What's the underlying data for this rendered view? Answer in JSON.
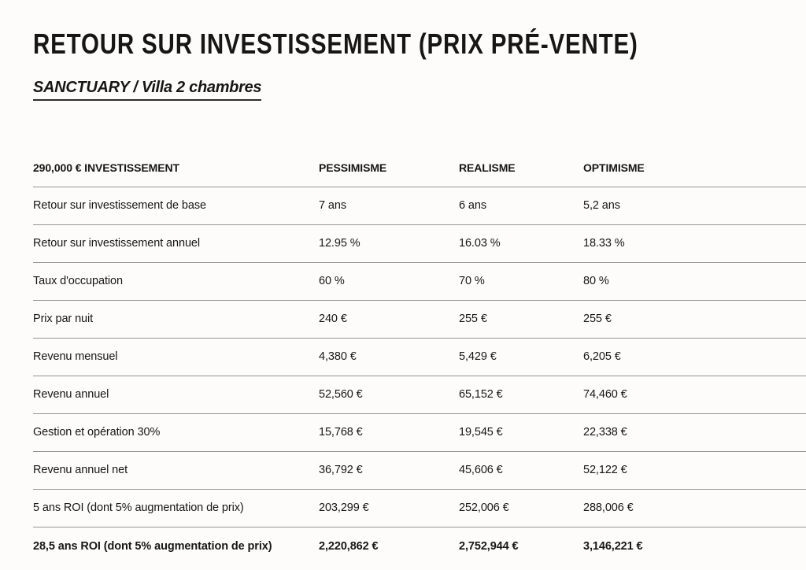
{
  "page": {
    "title": "RETOUR SUR INVESTISSEMENT (PRIX PRÉ-VENTE)",
    "subtitle": "SANCTUARY / Villa 2 chambres"
  },
  "table": {
    "header": {
      "label": "290,000 € INVESTISSEMENT",
      "columns": [
        "PESSIMISME",
        "REALISME",
        "OPTIMISME"
      ]
    },
    "rows": [
      {
        "label": "Retour sur investissement de base",
        "values": [
          "7 ans",
          "6 ans",
          "5,2 ans"
        ]
      },
      {
        "label": "Retour sur investissement annuel",
        "values": [
          "12.95 %",
          "16.03 %",
          "18.33 %"
        ]
      },
      {
        "label": "Taux d'occupation",
        "values": [
          "60 %",
          "70 %",
          "80 %"
        ]
      },
      {
        "label": "Prix par nuit",
        "values": [
          "240 €",
          "255 €",
          "255 €"
        ]
      },
      {
        "label": "Revenu mensuel",
        "values": [
          "4,380 €",
          "5,429 €",
          "6,205 €"
        ]
      },
      {
        "label": "Revenu annuel",
        "values": [
          "52,560 €",
          "65,152 €",
          "74,460 €"
        ]
      },
      {
        "label": "Gestion et opération 30%",
        "values": [
          "15,768 €",
          "19,545 €",
          "22,338 €"
        ]
      },
      {
        "label": "Revenu annuel net",
        "values": [
          "36,792 €",
          "45,606 €",
          "52,122 €"
        ]
      },
      {
        "label": "5 ans ROI (dont 5% augmentation de prix)",
        "values": [
          "203,299 €",
          "252,006 €",
          "288,006 €"
        ]
      },
      {
        "label": "28,5 ans ROI (dont 5% augmentation de prix)",
        "values": [
          "2,220,862 €",
          "2,752,944 €",
          "3,146,221 €"
        ]
      }
    ]
  },
  "colors": {
    "background": "#fdfcfa",
    "text": "#161616",
    "rule": "#979590"
  }
}
